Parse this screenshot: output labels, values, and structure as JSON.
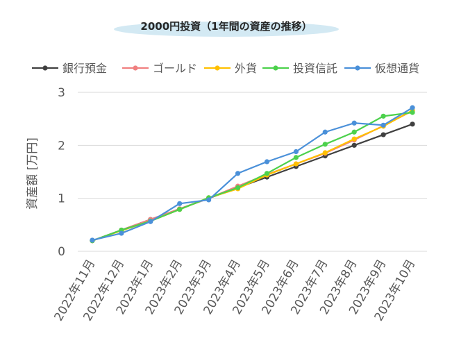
{
  "chart_data": {
    "type": "line",
    "title": "2000円投資（1年間の資産の推移）",
    "ylabel": "資産額 [万円]",
    "xlabel": "",
    "ylim": [
      0,
      3
    ],
    "yticks": [
      0,
      1,
      2,
      3
    ],
    "grid": true,
    "legend_position": "top",
    "categories": [
      "2022年11月",
      "2022年12月",
      "2023年1月",
      "2023年2月",
      "2023年3月",
      "2023年4月",
      "2023年5月",
      "2023年6月",
      "2023年7月",
      "2023年8月",
      "2023年9月",
      "2023年10月"
    ],
    "series": [
      {
        "name": "銀行預金",
        "color": "#404040",
        "values": [
          0.2,
          0.4,
          0.6,
          0.8,
          1.0,
          1.2,
          1.4,
          1.6,
          1.8,
          2.0,
          2.2,
          2.4
        ]
      },
      {
        "name": "ゴールド",
        "color": "#f08080",
        "values": [
          0.2,
          0.4,
          0.6,
          0.8,
          1.0,
          1.23,
          1.45,
          1.65,
          1.85,
          2.1,
          2.37,
          2.65
        ]
      },
      {
        "name": "外貨",
        "color": "#ffc000",
        "values": [
          0.2,
          0.39,
          0.57,
          0.79,
          1.01,
          1.18,
          1.44,
          1.65,
          1.86,
          2.12,
          2.36,
          2.66
        ]
      },
      {
        "name": "投資信託",
        "color": "#4cd14c",
        "values": [
          0.2,
          0.4,
          0.57,
          0.79,
          1.01,
          1.2,
          1.47,
          1.77,
          2.02,
          2.25,
          2.55,
          2.62
        ]
      },
      {
        "name": "仮想通貨",
        "color": "#4a90d9",
        "values": [
          0.21,
          0.34,
          0.56,
          0.9,
          0.97,
          1.47,
          1.69,
          1.88,
          2.25,
          2.42,
          2.38,
          2.71
        ]
      }
    ]
  }
}
